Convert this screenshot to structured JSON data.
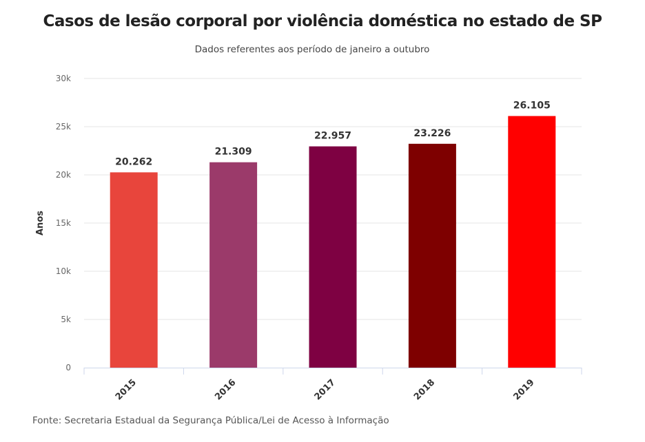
{
  "title": "Casos de lesão corporal por violência doméstica no estado de SP",
  "subtitle": "Dados referentes aos período de janeiro a outubro",
  "source": "Fonte: Secretaria Estadual da Segurança Pública/Lei de Acesso à Informação",
  "chart_data": {
    "type": "bar",
    "title": "Casos de lesão corporal por violência doméstica no estado de SP",
    "subtitle": "Dados referentes aos período de janeiro a outubro",
    "xlabel": "",
    "ylabel": "Anos",
    "categories": [
      "2015",
      "2016",
      "2017",
      "2018",
      "2019"
    ],
    "values": [
      20262,
      21309,
      22957,
      23226,
      26105
    ],
    "value_labels": [
      "20.262",
      "21.309",
      "22.957",
      "23.226",
      "26.105"
    ],
    "colors": [
      "#e8453c",
      "#9b3a6a",
      "#7e0142",
      "#7e0000",
      "#ff0000"
    ],
    "ylim": [
      0,
      30000
    ],
    "yticks": [
      0,
      5000,
      10000,
      15000,
      20000,
      25000,
      30000
    ],
    "ytick_labels": [
      "0",
      "5k",
      "10k",
      "15k",
      "20k",
      "25k",
      "30k"
    ],
    "grid": true,
    "legend": "none"
  }
}
